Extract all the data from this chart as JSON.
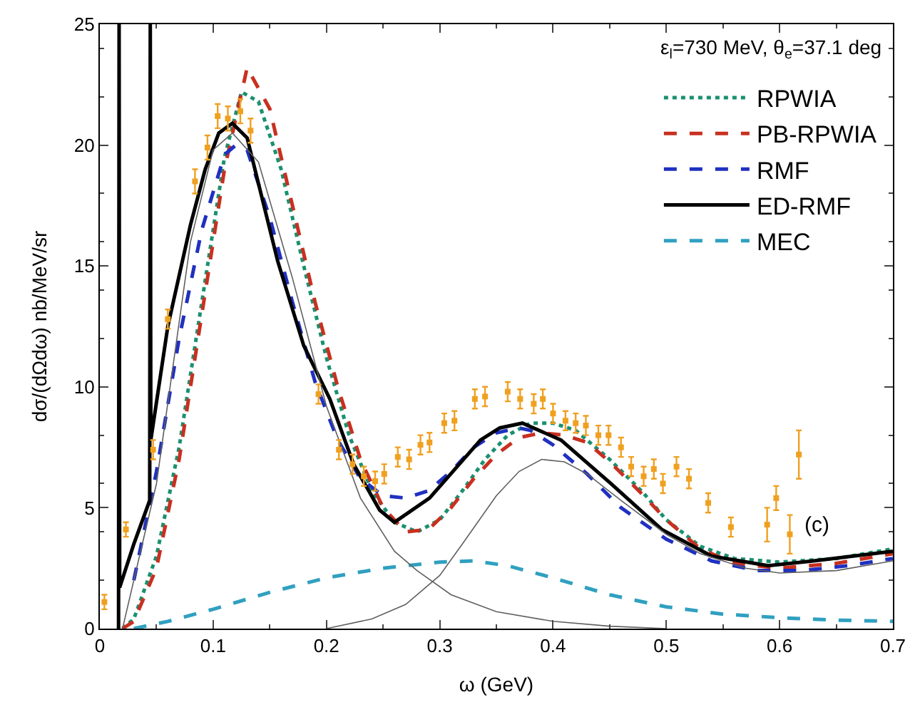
{
  "chart_data": {
    "type": "line",
    "xlabel": "ω (GeV)",
    "ylabel": "dσ/(dΩdω) nb/MeV/sr",
    "annotations": [
      "ε$_{l}$=730 MeV, θ$_{e}$=37.1 deg",
      "(c)"
    ],
    "xlim": [
      0,
      0.7
    ],
    "xticks": [
      0,
      0.1,
      0.2,
      0.3,
      0.4,
      0.5,
      0.6,
      0.7
    ],
    "ylim": [
      0,
      25
    ],
    "yticks": [
      0,
      5,
      10,
      15,
      20,
      25
    ],
    "legend": "top right",
    "series": [
      {
        "name": "RPWIA",
        "color": "#1a9070",
        "line_style": "dotted",
        "x": [
          0.02,
          0.03,
          0.05,
          0.07,
          0.09,
          0.11,
          0.125,
          0.14,
          0.16,
          0.18,
          0.2,
          0.22,
          0.24,
          0.26,
          0.28,
          0.3,
          0.32,
          0.34,
          0.36,
          0.38,
          0.4,
          0.42,
          0.45,
          0.48,
          0.5,
          0.53,
          0.56,
          0.6,
          0.65,
          0.7
        ],
        "values": [
          0,
          0.4,
          3,
          7.5,
          13.5,
          19.5,
          22.2,
          21.8,
          19,
          15,
          11.2,
          8,
          5.7,
          4.4,
          4.0,
          4.5,
          5.7,
          7.0,
          8.0,
          8.5,
          8.5,
          8.2,
          7.0,
          5.6,
          4.5,
          3.4,
          2.9,
          2.75,
          2.9,
          3.3
        ]
      },
      {
        "name": "PB-RPWIA",
        "color": "#c83020",
        "line_style": "dashed",
        "x": [
          0.02,
          0.03,
          0.05,
          0.07,
          0.09,
          0.11,
          0.13,
          0.15,
          0.17,
          0.19,
          0.21,
          0.23,
          0.25,
          0.27,
          0.29,
          0.31,
          0.33,
          0.35,
          0.37,
          0.39,
          0.41,
          0.43,
          0.45,
          0.48,
          0.5,
          0.53,
          0.56,
          0.6,
          0.65,
          0.7
        ],
        "values": [
          0,
          0.3,
          2.5,
          7,
          13,
          19,
          23.2,
          21.5,
          17.5,
          13.5,
          10,
          7,
          5,
          4.0,
          4.1,
          5.0,
          6.2,
          7.2,
          7.9,
          8.1,
          8.0,
          7.7,
          6.9,
          5.5,
          4.5,
          3.3,
          2.7,
          2.5,
          2.7,
          3.1
        ]
      },
      {
        "name": "RMF",
        "color": "#2030c0",
        "line_style": "dashed",
        "x": [
          0.03,
          0.05,
          0.07,
          0.09,
          0.11,
          0.12,
          0.13,
          0.15,
          0.17,
          0.19,
          0.21,
          0.23,
          0.25,
          0.27,
          0.29,
          0.31,
          0.33,
          0.35,
          0.37,
          0.38,
          0.4,
          0.43,
          0.46,
          0.5,
          0.54,
          0.58,
          0.62,
          0.66,
          0.7
        ],
        "values": [
          2,
          6.5,
          12,
          16.5,
          19.6,
          20.0,
          19.8,
          17,
          13.5,
          10.2,
          7.8,
          6.2,
          5.5,
          5.4,
          5.7,
          6.5,
          7.5,
          8.1,
          8.3,
          8.2,
          7.6,
          6.4,
          5.0,
          3.7,
          2.8,
          2.4,
          2.4,
          2.6,
          2.9
        ]
      },
      {
        "name": "ED-RMF",
        "color": "#000000",
        "line_style": "solid",
        "x": [
          0.0165,
          0.017,
          0.0175,
          0.03,
          0.044,
          0.0445,
          0.045,
          0.06,
          0.08,
          0.093,
          0.105,
          0.117,
          0.13,
          0.157,
          0.18,
          0.203,
          0.224,
          0.247,
          0.26,
          0.291,
          0.336,
          0.353,
          0.373,
          0.407,
          0.451,
          0.496,
          0.54,
          0.59,
          0.63,
          0.7
        ],
        "values": [
          0,
          25,
          1.7,
          3.5,
          5.3,
          25,
          7.8,
          12.5,
          16.7,
          19,
          20.5,
          20.9,
          20.3,
          15.2,
          11.7,
          9.5,
          6.8,
          4.9,
          4.4,
          5.4,
          7.8,
          8.3,
          8.5,
          7.8,
          6.0,
          4.1,
          3.0,
          2.6,
          2.8,
          3.2
        ]
      },
      {
        "name": "MEC",
        "color": "#30a0c0",
        "line_style": "dashed",
        "x": [
          0.03,
          0.06,
          0.1,
          0.15,
          0.2,
          0.25,
          0.3,
          0.33,
          0.36,
          0.4,
          0.45,
          0.5,
          0.55,
          0.6,
          0.65,
          0.7
        ],
        "values": [
          0,
          0.3,
          0.8,
          1.5,
          2.1,
          2.5,
          2.75,
          2.8,
          2.6,
          2.1,
          1.4,
          0.9,
          0.6,
          0.45,
          0.35,
          0.3
        ]
      },
      {
        "color": "#606060",
        "line_style": "solid",
        "x": [
          0.02,
          0.05,
          0.08,
          0.1,
          0.117,
          0.14,
          0.17,
          0.2,
          0.23,
          0.26,
          0.28,
          0.31,
          0.35,
          0.4,
          0.45,
          0.5
        ],
        "values": [
          0,
          6,
          16,
          19.8,
          20.5,
          19.3,
          14.5,
          9.2,
          5.4,
          3.2,
          2.4,
          1.4,
          0.7,
          0.3,
          0.1,
          0
        ]
      },
      {
        "color": "#606060",
        "line_style": "solid",
        "x": [
          0.2,
          0.24,
          0.27,
          0.3,
          0.32,
          0.35,
          0.37,
          0.39,
          0.41,
          0.43,
          0.46,
          0.5,
          0.53,
          0.57,
          0.6,
          0.65,
          0.7
        ],
        "values": [
          0,
          0.4,
          1,
          2.2,
          3.5,
          5.5,
          6.5,
          7.0,
          6.9,
          6.4,
          5.3,
          3.9,
          3.1,
          2.5,
          2.3,
          2.4,
          2.8
        ]
      },
      {
        "type": "scatter",
        "color": "#f0a020",
        "marker": "square",
        "x": [
          0.004,
          0.023,
          0.047,
          0.06,
          0.084,
          0.095,
          0.104,
          0.113,
          0.124,
          0.133,
          0.193,
          0.211,
          0.223,
          0.233,
          0.243,
          0.251,
          0.263,
          0.273,
          0.283,
          0.291,
          0.304,
          0.313,
          0.331,
          0.34,
          0.36,
          0.371,
          0.383,
          0.391,
          0.4,
          0.411,
          0.42,
          0.429,
          0.44,
          0.449,
          0.46,
          0.469,
          0.48,
          0.489,
          0.497,
          0.509,
          0.52,
          0.537,
          0.557,
          0.589,
          0.597,
          0.609,
          0.617
        ],
        "values": [
          1.1,
          4.1,
          7.4,
          12.8,
          18.5,
          19.9,
          21.2,
          21.1,
          21.4,
          20.6,
          9.7,
          7.4,
          6.8,
          6.3,
          6.1,
          6.4,
          7.1,
          7.0,
          7.6,
          7.7,
          8.5,
          8.6,
          9.5,
          9.6,
          9.8,
          9.5,
          9.3,
          9.5,
          8.9,
          8.6,
          8.5,
          8.4,
          8.0,
          8.0,
          7.5,
          6.7,
          6.3,
          6.6,
          6.0,
          6.7,
          6.2,
          5.2,
          4.2,
          4.3,
          5.4,
          3.9,
          7.2
        ],
        "errors": [
          0.3,
          0.3,
          0.4,
          0.4,
          0.5,
          0.5,
          0.5,
          0.5,
          0.5,
          0.5,
          0.4,
          0.4,
          0.4,
          0.4,
          0.4,
          0.4,
          0.4,
          0.4,
          0.4,
          0.4,
          0.4,
          0.4,
          0.4,
          0.4,
          0.4,
          0.4,
          0.4,
          0.4,
          0.4,
          0.4,
          0.4,
          0.4,
          0.4,
          0.4,
          0.4,
          0.4,
          0.4,
          0.4,
          0.4,
          0.4,
          0.4,
          0.4,
          0.4,
          0.7,
          0.5,
          0.8,
          1.0
        ]
      }
    ]
  }
}
